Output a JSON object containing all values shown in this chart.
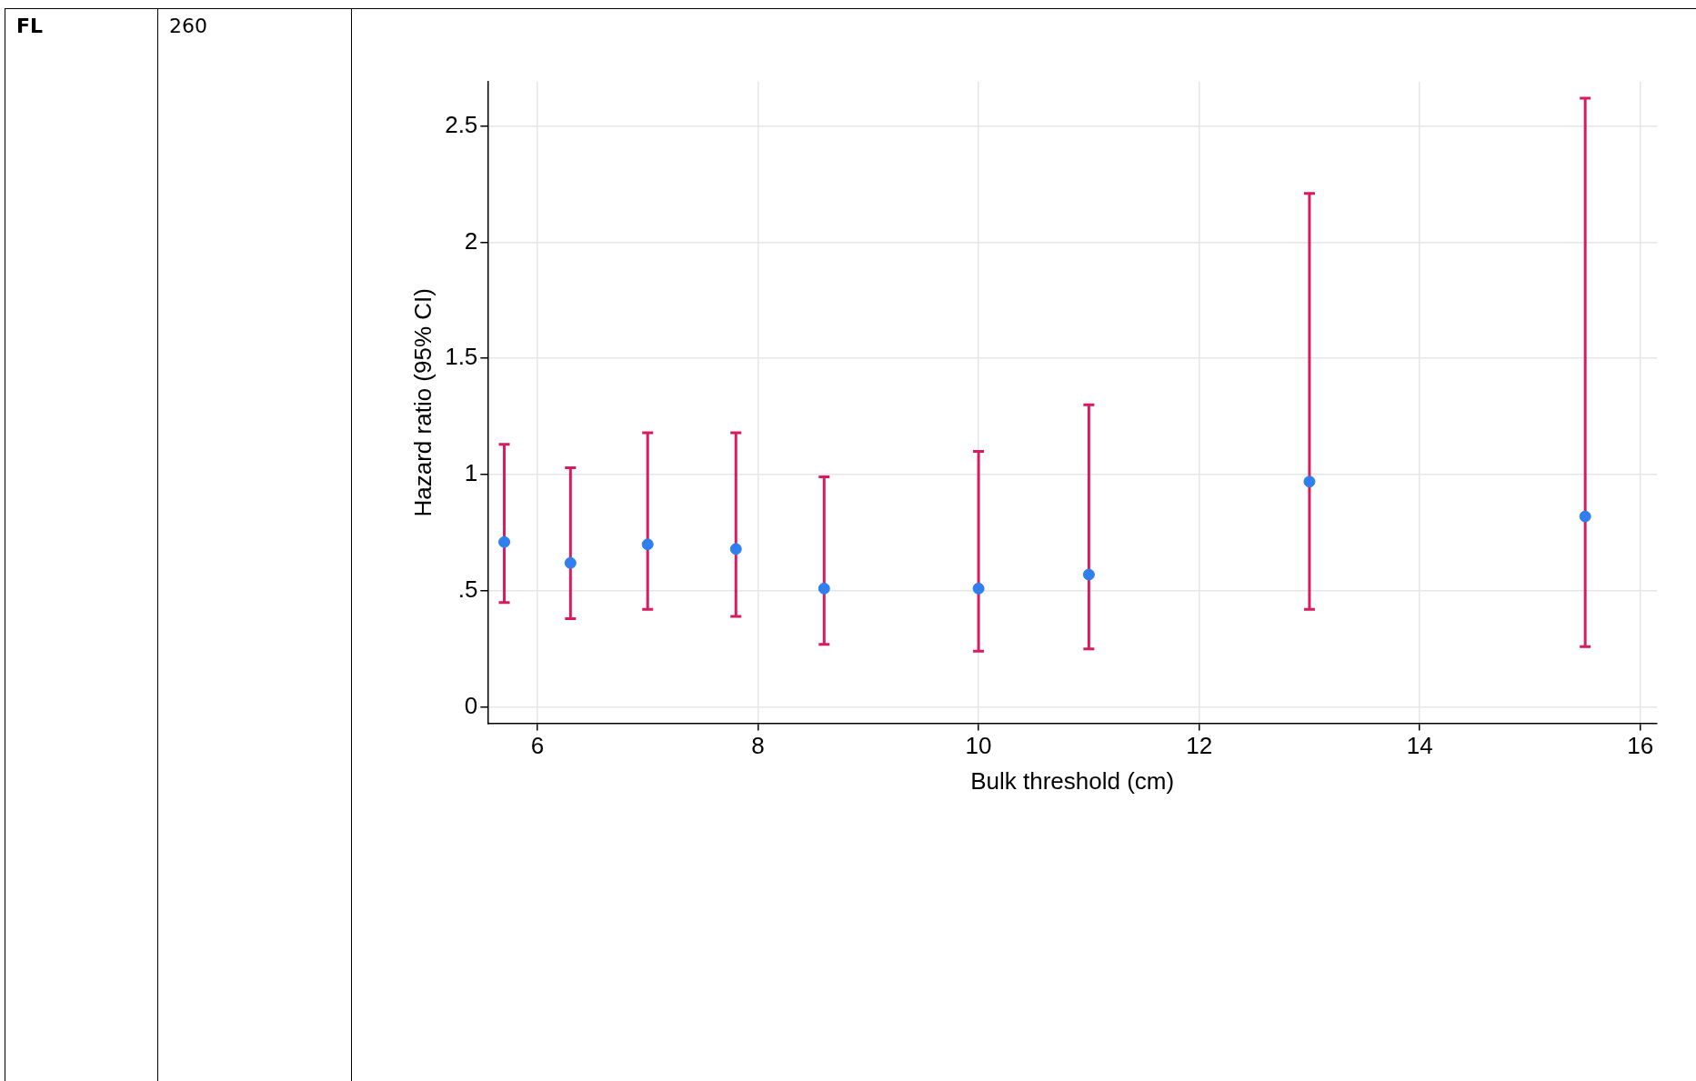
{
  "chart_data": {
    "type": "scatter",
    "xlabel": "Bulk threshold (cm)",
    "ylabel": "Hazard ratio (95% CI)",
    "annotations": [
      "FL",
      "260"
    ],
    "x": [
      5.7,
      6.3,
      7.0,
      7.8,
      8.6,
      10,
      11,
      13,
      15.5
    ],
    "series": [
      {
        "color": "#2f7fef",
        "values": [
          0.71,
          0.62,
          0.7,
          0.68,
          0.51,
          0.51,
          0.57,
          0.97,
          0.82
        ],
        "errors": [
          [
            0.45,
            1.13
          ],
          [
            0.38,
            1.03
          ],
          [
            0.42,
            1.18
          ],
          [
            0.39,
            1.18
          ],
          [
            0.27,
            0.99
          ],
          [
            0.24,
            1.1
          ],
          [
            0.25,
            1.3
          ],
          [
            0.42,
            2.21
          ],
          [
            0.26,
            2.62
          ]
        ]
      }
    ],
    "xlim": [
      5.55,
      16.15
    ],
    "ylim": [
      -0.07,
      2.69
    ],
    "xticks": [
      6,
      8,
      10,
      12,
      14,
      16
    ],
    "yticks": [
      0,
      {
        "value": 0.5,
        "label": ".5"
      },
      1,
      1.5,
      2,
      2.5
    ],
    "grid": true,
    "marker": "circle",
    "legend": false
  }
}
